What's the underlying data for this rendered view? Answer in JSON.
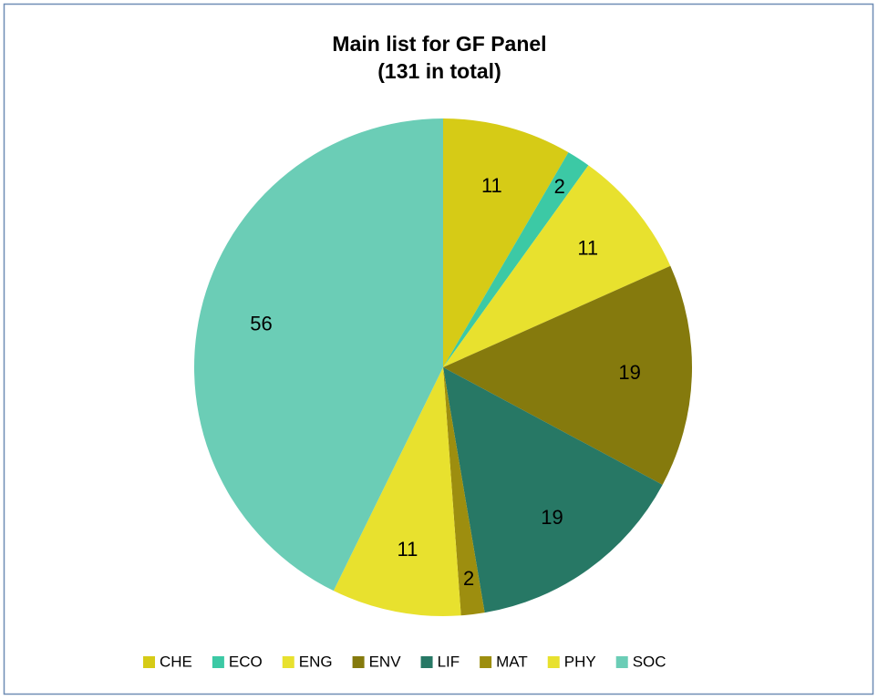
{
  "chart_data": {
    "type": "pie",
    "title": "Main list for GF Panel",
    "subtitle": "(131 in total)",
    "categories": [
      "CHE",
      "ECO",
      "ENG",
      "ENV",
      "LIF",
      "MAT",
      "PHY",
      "SOC"
    ],
    "values": [
      11,
      2,
      11,
      19,
      19,
      2,
      11,
      56
    ],
    "colors": [
      "#d6cb16",
      "#3cc9a5",
      "#e8e12e",
      "#857a0d",
      "#277865",
      "#9d8e0f",
      "#e8e12e",
      "#6bcdb6"
    ],
    "legend": "bottom"
  }
}
